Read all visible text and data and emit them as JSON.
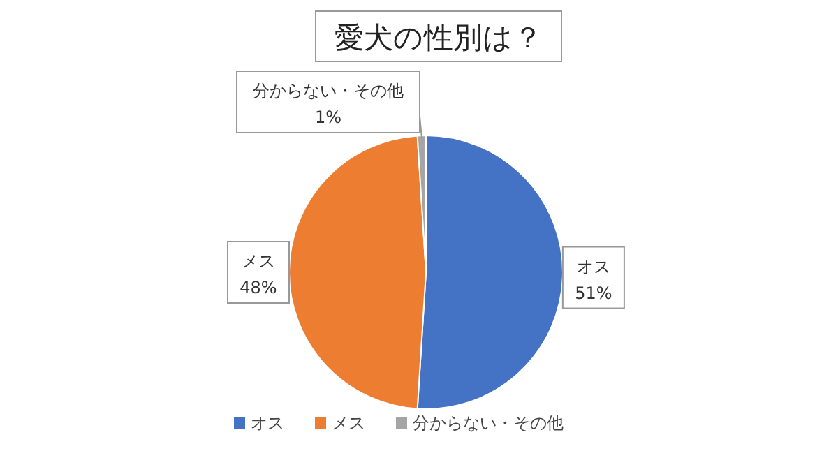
{
  "chart_data": {
    "type": "pie",
    "title": "愛犬の性別は？",
    "categories": [
      "オス",
      "メス",
      "分からない・その他"
    ],
    "values": [
      51,
      48,
      1
    ],
    "colors": [
      "#4472c4",
      "#ed7d31",
      "#a5a5a5"
    ],
    "value_labels": [
      "51%",
      "48%",
      "1%"
    ],
    "legend": "bottom"
  }
}
